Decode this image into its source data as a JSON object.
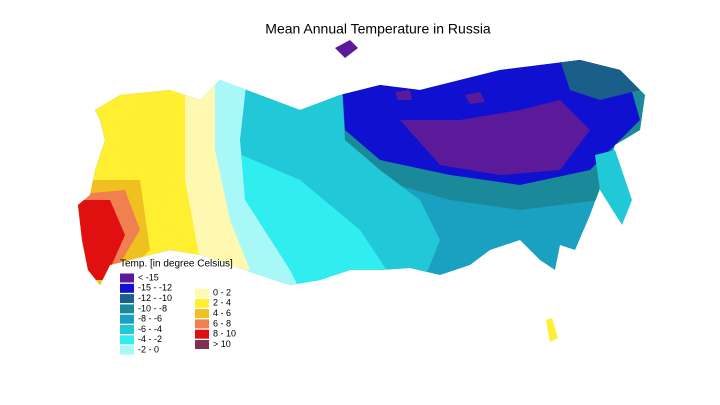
{
  "title": "Mean Annual Temperature in Russia",
  "legend": {
    "title": "Temp. [in degree Celsius]",
    "left": [
      {
        "label": "< -15",
        "color": "#5a1a9a"
      },
      {
        "label": "-15 - -12",
        "color": "#1010d0"
      },
      {
        "label": "-12 - -10",
        "color": "#1a5f8a"
      },
      {
        "label": "-10 - -8",
        "color": "#1a8a9a"
      },
      {
        "label": "-8 - -6",
        "color": "#1aa0c0"
      },
      {
        "label": "-6 - -4",
        "color": "#20c8d8"
      },
      {
        "label": "-4 - -2",
        "color": "#30eef0"
      },
      {
        "label": "-2 - 0",
        "color": "#a8f8f8"
      }
    ],
    "right": [
      {
        "label": "0 - 2",
        "color": "#fff8b0"
      },
      {
        "label": "2 - 4",
        "color": "#ffef30"
      },
      {
        "label": "4 - 6",
        "color": "#f0c020"
      },
      {
        "label": "6 - 8",
        "color": "#f08050"
      },
      {
        "label": "8 - 10",
        "color": "#e01010"
      },
      {
        "label": "> 10",
        "color": "#803050"
      }
    ]
  }
}
